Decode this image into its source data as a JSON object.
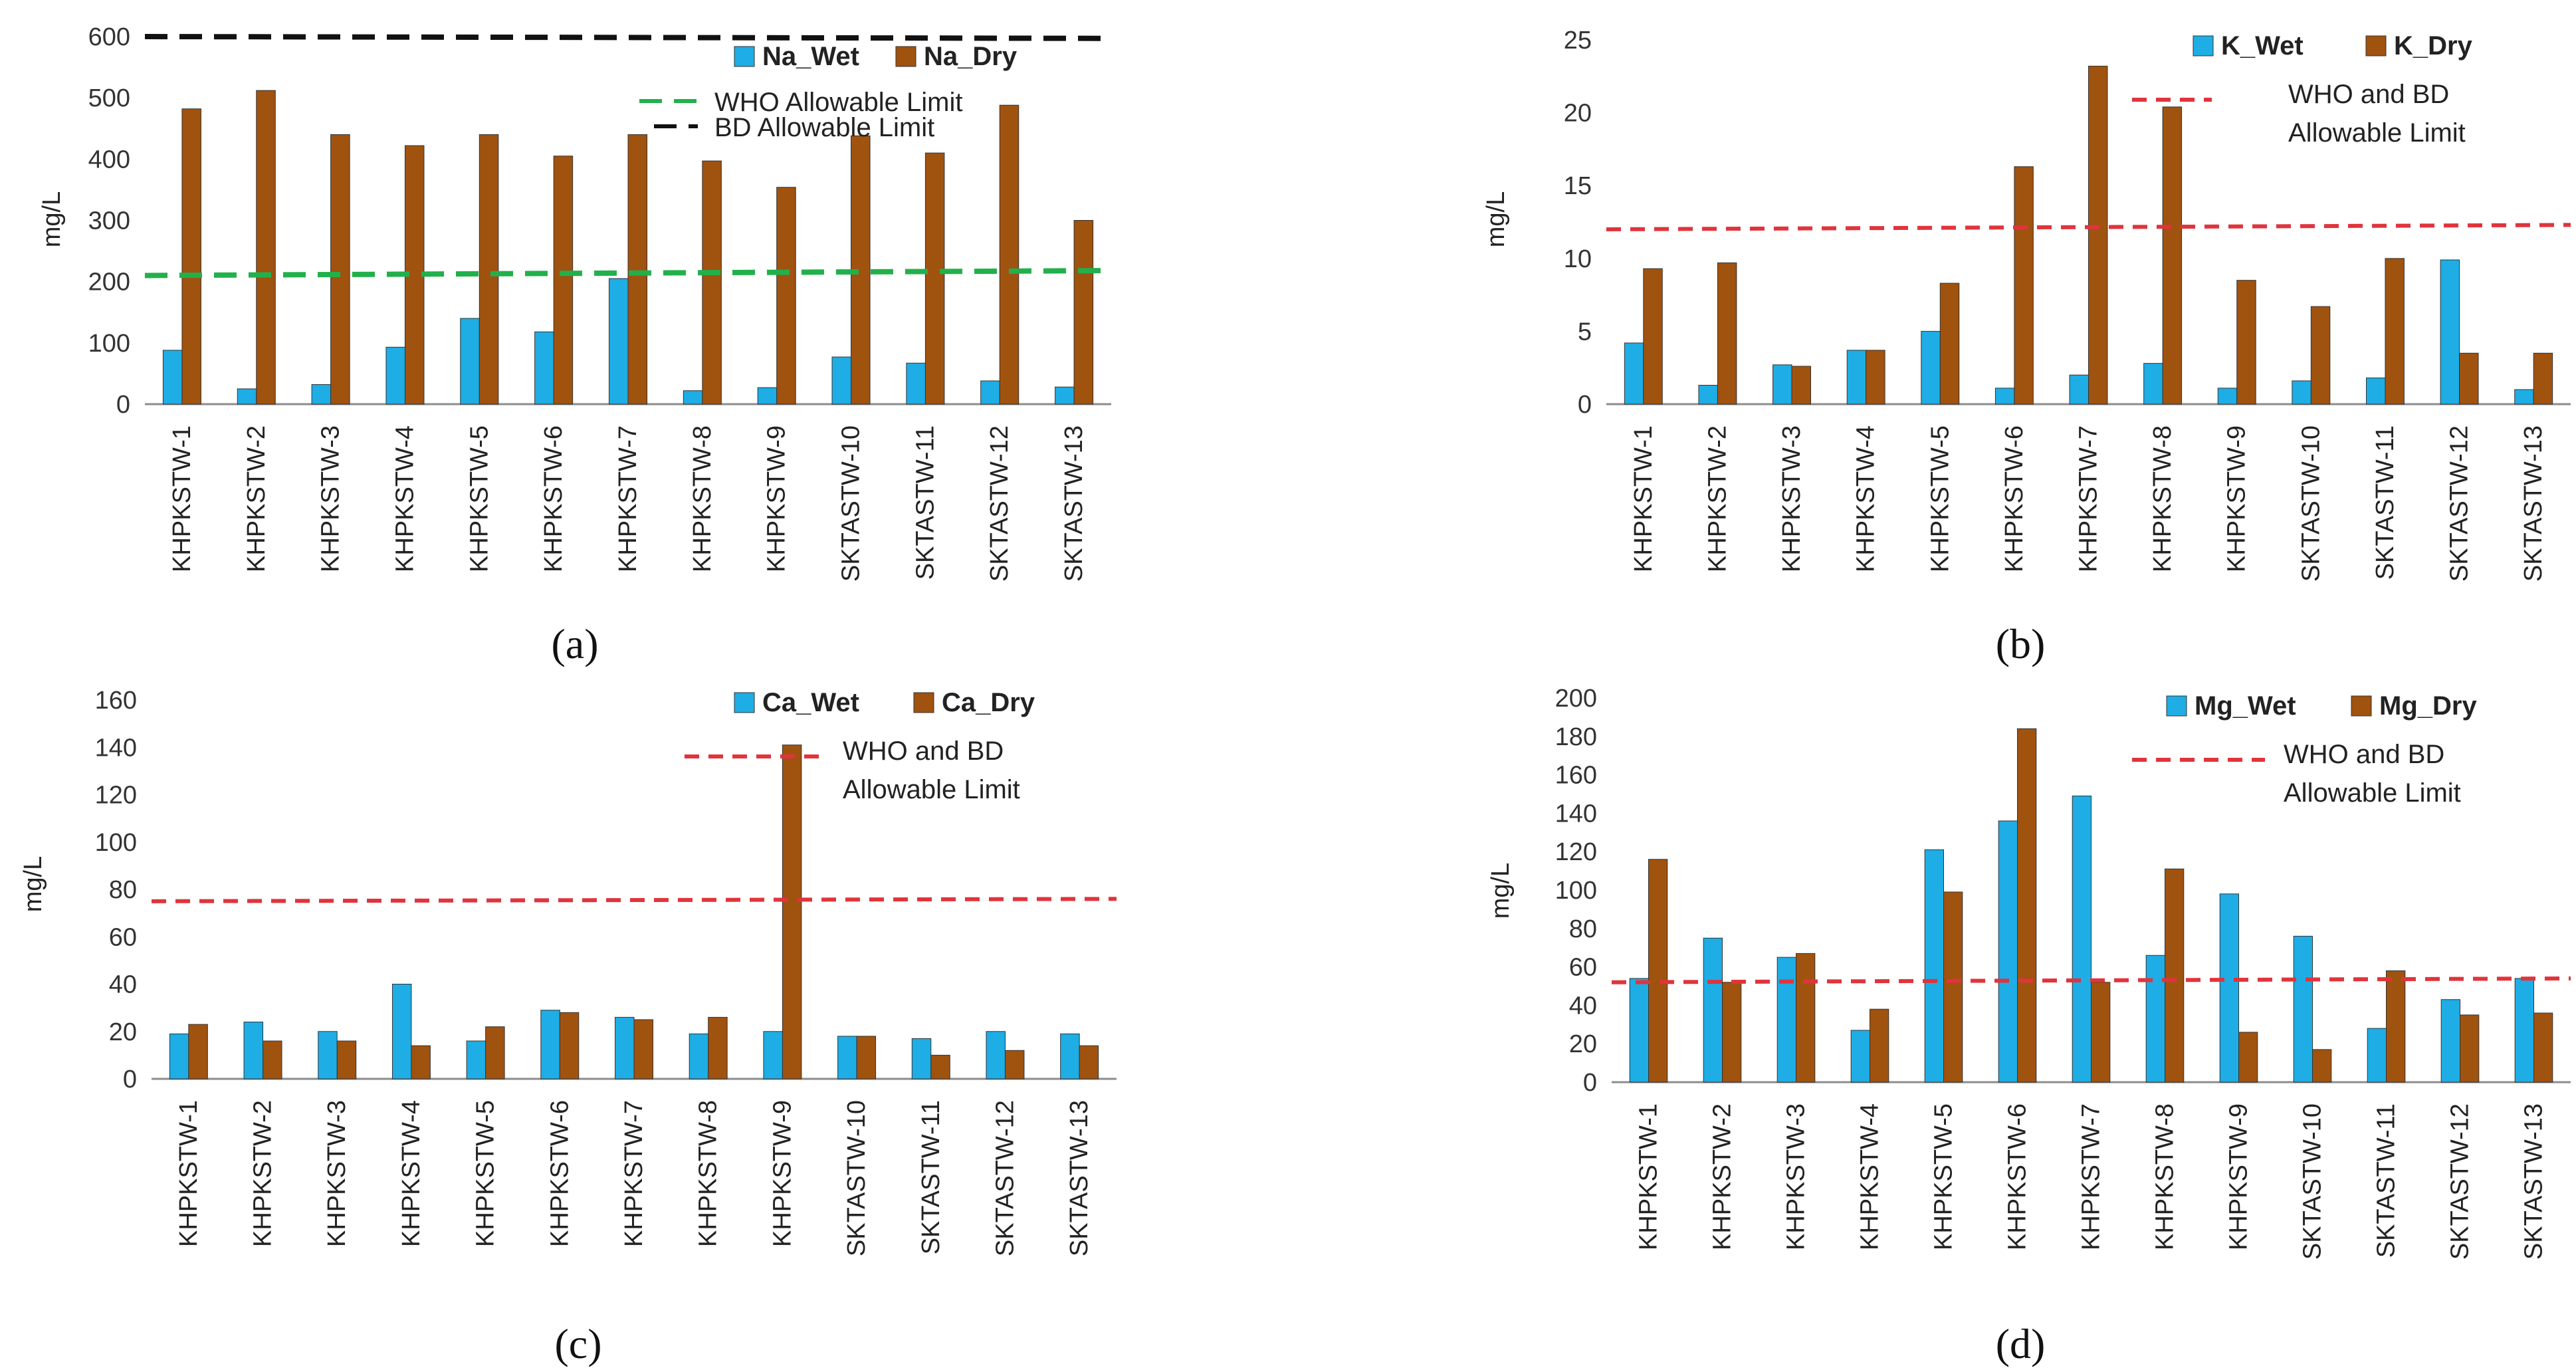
{
  "colors": {
    "wet": "#1EADE5",
    "dry": "#A0520F",
    "green": "#22B04B",
    "black": "#111111",
    "red": "#E0343C",
    "grid_axis": "#8C8C8C"
  },
  "chart_data": [
    {
      "type": "bar",
      "panel_label": "(a)",
      "ylabel": "mg/L",
      "ylim": [
        0,
        600
      ],
      "yticks": [
        0,
        100,
        200,
        300,
        400,
        500,
        600
      ],
      "categories": [
        "KHPKSTW-1",
        "KHPKSTW-2",
        "KHPKSTW-3",
        "KHPKSTW-4",
        "KHPKSTW-5",
        "KHPKSTW-6",
        "KHPKSTW-7",
        "KHPKSTW-8",
        "KHPKSTW-9",
        "SKTASTW-10",
        "SKTASTW-11",
        "SKTASTW-12",
        "SKTASTW-13"
      ],
      "series": [
        {
          "name": "Na_Wet",
          "values": [
            88,
            25,
            32,
            93,
            140,
            118,
            205,
            22,
            27,
            77,
            67,
            38,
            28
          ]
        },
        {
          "name": "Na_Dry",
          "values": [
            482,
            512,
            440,
            422,
            440,
            405,
            440,
            397,
            354,
            438,
            410,
            488,
            300
          ]
        }
      ],
      "limits": [
        {
          "name": "WHO Allowable Limit",
          "values": [
            210,
            218
          ],
          "style": "green"
        },
        {
          "name": "BD Allowable Limit",
          "values": [
            600,
            597
          ],
          "style": "black"
        }
      ],
      "legend": "top-right"
    },
    {
      "type": "bar",
      "panel_label": "(b)",
      "ylabel": "mg/L",
      "ylim": [
        0,
        25
      ],
      "yticks": [
        0,
        5,
        10,
        15,
        20,
        25
      ],
      "categories": [
        "KHPKSTW-1",
        "KHPKSTW-2",
        "KHPKSTW-3",
        "KHPKSTW-4",
        "KHPKSTW-5",
        "KHPKSTW-6",
        "KHPKSTW-7",
        "KHPKSTW-8",
        "KHPKSTW-9",
        "SKTASTW-10",
        "SKTASTW-11",
        "SKTASTW-12",
        "SKTASTW-13"
      ],
      "series": [
        {
          "name": "K_Wet",
          "values": [
            4.2,
            1.3,
            2.7,
            3.7,
            5.0,
            1.1,
            2.0,
            2.8,
            1.1,
            1.6,
            1.8,
            9.9,
            1.0
          ]
        },
        {
          "name": "K_Dry",
          "values": [
            9.3,
            9.7,
            2.6,
            3.7,
            8.3,
            16.3,
            23.2,
            20.4,
            8.5,
            6.7,
            10.0,
            3.5,
            3.5
          ]
        }
      ],
      "limits": [
        {
          "name": "WHO and BD Allowable Limit",
          "values": [
            12.0,
            12.3
          ],
          "style": "red"
        }
      ],
      "legend": "top-right"
    },
    {
      "type": "bar",
      "panel_label": "(c)",
      "ylabel": "mg/L",
      "ylim": [
        0,
        160
      ],
      "yticks": [
        0,
        20,
        40,
        60,
        80,
        100,
        120,
        140,
        160
      ],
      "categories": [
        "KHPKSTW-1",
        "KHPKSTW-2",
        "KHPKSTW-3",
        "KHPKSTW-4",
        "KHPKSTW-5",
        "KHPKSTW-6",
        "KHPKSTW-7",
        "KHPKSTW-8",
        "KHPKSTW-9",
        "SKTASTW-10",
        "SKTASTW-11",
        "SKTASTW-12",
        "SKTASTW-13"
      ],
      "series": [
        {
          "name": "Ca_Wet",
          "values": [
            19,
            24,
            20,
            40,
            16,
            29,
            26,
            19,
            20,
            18,
            17,
            20,
            19
          ]
        },
        {
          "name": "Ca_Dry",
          "values": [
            23,
            16,
            16,
            14,
            22,
            28,
            25,
            26,
            141,
            18,
            10,
            12,
            14
          ]
        }
      ],
      "limits": [
        {
          "name": "WHO and BD Allowable Limit",
          "values": [
            75,
            76
          ],
          "style": "red"
        }
      ],
      "legend": "top-right"
    },
    {
      "type": "bar",
      "panel_label": "(d)",
      "ylabel": "mg/L",
      "ylim": [
        0,
        200
      ],
      "yticks": [
        0,
        20,
        40,
        60,
        80,
        100,
        120,
        140,
        160,
        180,
        200
      ],
      "categories": [
        "KHPKSTW-1",
        "KHPKSTW-2",
        "KHPKSTW-3",
        "KHPKSTW-4",
        "KHPKSTW-5",
        "KHPKSTW-6",
        "KHPKSTW-7",
        "KHPKSTW-8",
        "KHPKSTW-9",
        "SKTASTW-10",
        "SKTASTW-11",
        "SKTASTW-12",
        "SKTASTW-13"
      ],
      "series": [
        {
          "name": "Mg_Wet",
          "values": [
            54,
            75,
            65,
            27,
            121,
            136,
            149,
            66,
            98,
            76,
            28,
            43,
            54
          ]
        },
        {
          "name": "Mg_Dry",
          "values": [
            116,
            52,
            67,
            38,
            99,
            184,
            52,
            111,
            26,
            17,
            58,
            35,
            36
          ]
        }
      ],
      "limits": [
        {
          "name": "WHO and BD Allowable Limit",
          "values": [
            52,
            54
          ],
          "style": "red"
        }
      ],
      "legend": "top-right"
    }
  ]
}
